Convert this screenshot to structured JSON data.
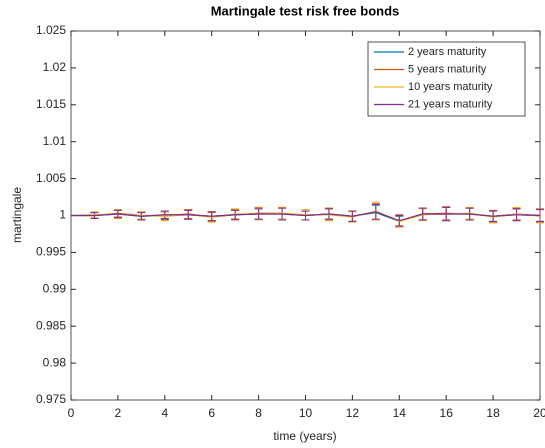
{
  "chart_data": {
    "type": "line",
    "title": "Martingale test risk free bonds",
    "x_label": "time (years)",
    "y_label": "martingale",
    "x": [
      0,
      1,
      2,
      3,
      4,
      5,
      6,
      7,
      8,
      9,
      10,
      11,
      12,
      13,
      14,
      15,
      16,
      17,
      18,
      19,
      20
    ],
    "xlim": [
      0,
      20
    ],
    "xticks": [
      0,
      2,
      4,
      6,
      8,
      10,
      12,
      14,
      16,
      18,
      20
    ],
    "ylim": [
      0.975,
      1.025
    ],
    "yticks": [
      0.975,
      0.98,
      0.985,
      0.99,
      0.995,
      1,
      1.005,
      1.01,
      1.015,
      1.02,
      1.025
    ],
    "grid": false,
    "legend_position": "northeast",
    "series": [
      {
        "name": "2 years maturity",
        "color": "#0072bd",
        "values": [
          1,
          1.0,
          1.0002,
          0.9999,
          1.0,
          1.0001,
          0.9999,
          1.0001,
          1.0002,
          1.0002,
          1.0,
          1.0002,
          0.9999,
          1.0004,
          0.9992,
          1.0002,
          1.0002,
          1.0002,
          0.9999,
          1.0001,
          1.0
        ],
        "errors": [
          0,
          0.0004,
          0.0005,
          0.0005,
          0.0005,
          0.0006,
          0.0006,
          0.0006,
          0.0007,
          0.0008,
          0.0006,
          0.0007,
          0.0007,
          0.001,
          0.0007,
          0.0008,
          0.0009,
          0.0008,
          0.0007,
          0.0008,
          0.0008
        ]
      },
      {
        "name": "5 years maturity",
        "color": "#d95319",
        "values": [
          1,
          1.0,
          1.0003,
          1.0,
          1.0,
          1.0002,
          0.9998,
          1.0001,
          1.0003,
          1.0003,
          1.0,
          1.0002,
          0.9999,
          1.0005,
          0.9993,
          1.0002,
          1.0003,
          1.0002,
          0.9999,
          1.0002,
          1.0
        ],
        "errors": [
          0,
          0.0004,
          0.0005,
          0.0005,
          0.0006,
          0.0006,
          0.0006,
          0.0007,
          0.0008,
          0.0008,
          0.0006,
          0.0008,
          0.0007,
          0.0011,
          0.0008,
          0.0008,
          0.0009,
          0.0008,
          0.0008,
          0.0008,
          0.0009
        ]
      },
      {
        "name": "10 years maturity",
        "color": "#edb120",
        "values": [
          1,
          1.0001,
          1.0002,
          1.0,
          0.9999,
          1.0001,
          0.9998,
          1.0002,
          1.0002,
          1.0003,
          1.0001,
          1.0001,
          0.9998,
          1.0006,
          0.9992,
          1.0001,
          1.0002,
          1.0003,
          0.9998,
          1.0002,
          0.9999
        ],
        "errors": [
          0,
          0.0004,
          0.0006,
          0.0005,
          0.0006,
          0.0006,
          0.0007,
          0.0007,
          0.0008,
          0.0008,
          0.0007,
          0.0008,
          0.0007,
          0.0012,
          0.0008,
          0.0008,
          0.0009,
          0.0008,
          0.0008,
          0.0009,
          0.0009
        ]
      },
      {
        "name": "21 years maturity",
        "color": "#7e2f8e",
        "values": [
          1,
          1.0,
          1.0002,
          0.9999,
          1.0001,
          1.0001,
          0.9999,
          1.0001,
          1.0002,
          1.0002,
          1.0,
          1.0002,
          0.9999,
          1.0005,
          0.9993,
          1.0002,
          1.0002,
          1.0002,
          0.9999,
          1.0001,
          1.0
        ],
        "errors": [
          0,
          0.0004,
          0.0005,
          0.0005,
          0.0005,
          0.0006,
          0.0006,
          0.0006,
          0.0007,
          0.0008,
          0.0006,
          0.0007,
          0.0007,
          0.001,
          0.0007,
          0.0008,
          0.0009,
          0.0008,
          0.0007,
          0.0008,
          0.0008
        ]
      }
    ]
  }
}
